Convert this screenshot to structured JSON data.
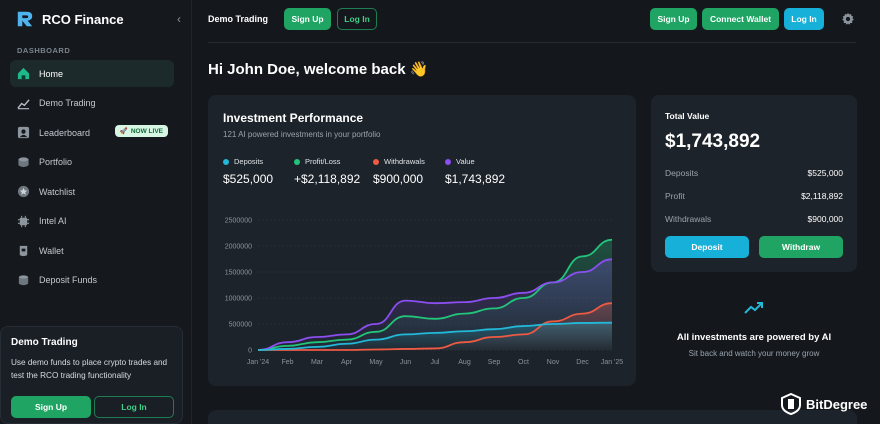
{
  "brand": {
    "name": "RCO Finance"
  },
  "sidebar": {
    "section_label": "DASHBOARD",
    "items": [
      {
        "label": "Home",
        "icon": "home-icon"
      },
      {
        "label": "Demo Trading",
        "icon": "chart-icon"
      },
      {
        "label": "Leaderboard",
        "icon": "user-icon",
        "badge": "NOW LIVE"
      },
      {
        "label": "Portfolio",
        "icon": "layers-icon"
      },
      {
        "label": "Watchlist",
        "icon": "star-icon"
      },
      {
        "label": "Intel AI",
        "icon": "cpu-icon"
      },
      {
        "label": "Wallet",
        "icon": "wallet-icon"
      },
      {
        "label": "Deposit Funds",
        "icon": "database-icon"
      }
    ],
    "demo_card": {
      "title": "Demo Trading",
      "description": "Use demo funds to place crypto trades and test the RCO trading functionality",
      "sign_up": "Sign Up",
      "log_in": "Log In"
    }
  },
  "topbar": {
    "title": "Demo Trading",
    "sign_up": "Sign Up",
    "log_in": "Log In",
    "right_sign_up": "Sign Up",
    "connect_wallet": "Connect Wallet",
    "right_log_in": "Log In"
  },
  "welcome": "Hi John Doe, welcome back 👋",
  "performance": {
    "title": "Investment Performance",
    "subtitle": "121 AI powered investments in your portfolio",
    "legend": [
      {
        "label": "Deposits",
        "value": "$525,000",
        "color": "#22b8d8"
      },
      {
        "label": "Profit/Loss",
        "value": "+$2,118,892",
        "color": "#22c47a"
      },
      {
        "label": "Withdrawals",
        "value": "$900,000",
        "color": "#ef5a43"
      },
      {
        "label": "Value",
        "value": "$1,743,892",
        "color": "#8b4ef0"
      }
    ]
  },
  "chart_data": {
    "type": "line",
    "categories": [
      "Jan '24",
      "Feb",
      "Mar",
      "Apr",
      "May",
      "Jun",
      "Jul",
      "Aug",
      "Sep",
      "Oct",
      "Nov",
      "Dec",
      "Jan '25"
    ],
    "ylim": [
      0,
      2500000
    ],
    "yticks": [
      "2500000",
      "2000000",
      "1500000",
      "1000000",
      "500000",
      "0"
    ],
    "grid": true,
    "series": [
      {
        "name": "Deposits",
        "color": "#22b8d8",
        "values": [
          0,
          20000,
          60000,
          120000,
          200000,
          300000,
          330000,
          360000,
          400000,
          460000,
          500000,
          520000,
          525000
        ]
      },
      {
        "name": "Profit/Loss",
        "color": "#22c47a",
        "values": [
          0,
          80000,
          150000,
          200000,
          350000,
          650000,
          600000,
          700000,
          800000,
          1000000,
          1300000,
          1800000,
          2118892
        ]
      },
      {
        "name": "Withdrawals",
        "color": "#ef5a43",
        "values": [
          0,
          0,
          0,
          0,
          10000,
          20000,
          30000,
          150000,
          250000,
          300000,
          550000,
          700000,
          900000
        ]
      },
      {
        "name": "Value",
        "color": "#8b4ef0",
        "values": [
          0,
          150000,
          250000,
          300000,
          500000,
          950000,
          900000,
          920000,
          1000000,
          1100000,
          1300000,
          1500000,
          1743892
        ]
      }
    ]
  },
  "total_value": {
    "title": "Total Value",
    "amount": "$1,743,892",
    "rows": [
      {
        "label": "Deposits",
        "value": "$525,000"
      },
      {
        "label": "Profit",
        "value": "$2,118,892"
      },
      {
        "label": "Withdrawals",
        "value": "$900,000"
      }
    ],
    "deposit": "Deposit",
    "withdraw": "Withdraw"
  },
  "ai": {
    "title": "All investments are powered by AI",
    "subtitle": "Sit back and watch your money grow"
  },
  "watermark": "BitDegree"
}
